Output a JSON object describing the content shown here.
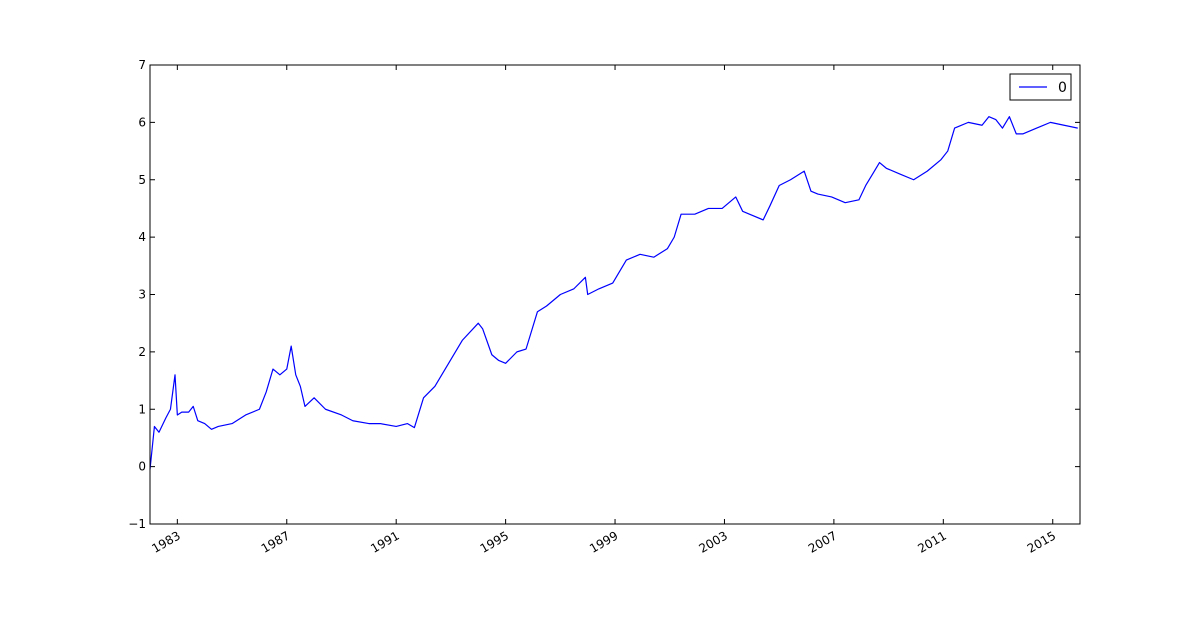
{
  "chart_data": {
    "type": "line",
    "title": "",
    "xlabel": "",
    "ylabel": "",
    "xlim": [
      "1982-01-01",
      "2015-12-31"
    ],
    "ylim": [
      -1,
      7
    ],
    "x_ticks": [
      "1983",
      "1987",
      "1991",
      "1995",
      "1999",
      "2003",
      "2007",
      "2011",
      "2015"
    ],
    "y_ticks": [
      "−1",
      "0",
      "1",
      "2",
      "3",
      "4",
      "5",
      "6",
      "7"
    ],
    "grid": false,
    "legend_placement": "top-right",
    "series_color": "#0000ff",
    "series": [
      {
        "name": "0",
        "x": [
          "1982-01-01",
          "1982-03-01",
          "1982-05-01",
          "1982-08-01",
          "1982-10-01",
          "1982-12-01",
          "1983-01-01",
          "1983-03-01",
          "1983-06-01",
          "1983-08-01",
          "1983-10-01",
          "1984-01-01",
          "1984-04-01",
          "1984-07-01",
          "1985-01-01",
          "1985-07-01",
          "1986-01-01",
          "1986-04-01",
          "1986-07-01",
          "1986-10-01",
          "1987-01-01",
          "1987-03-01",
          "1987-05-01",
          "1987-07-01",
          "1987-09-01",
          "1988-01-01",
          "1988-06-01",
          "1989-01-01",
          "1989-06-01",
          "1990-01-01",
          "1990-06-01",
          "1991-01-01",
          "1991-06-01",
          "1991-09-01",
          "1992-01-01",
          "1992-06-01",
          "1992-12-01",
          "1993-06-01",
          "1994-01-01",
          "1994-03-01",
          "1994-07-01",
          "1994-10-01",
          "1995-01-01",
          "1995-06-01",
          "1995-10-01",
          "1996-03-01",
          "1996-07-01",
          "1997-01-01",
          "1997-07-01",
          "1997-12-01",
          "1998-01-01",
          "1998-06-01",
          "1998-12-01",
          "1999-06-01",
          "1999-12-01",
          "2000-06-01",
          "2000-12-01",
          "2001-03-01",
          "2001-06-01",
          "2001-12-01",
          "2002-06-01",
          "2002-12-01",
          "2003-06-01",
          "2003-09-01",
          "2003-12-01",
          "2004-06-01",
          "2004-09-01",
          "2005-01-01",
          "2005-06-01",
          "2005-12-01",
          "2006-03-01",
          "2006-06-01",
          "2006-12-01",
          "2007-06-01",
          "2007-12-01",
          "2008-03-01",
          "2008-06-01",
          "2008-09-01",
          "2008-12-01",
          "2009-06-01",
          "2009-12-01",
          "2010-06-01",
          "2010-12-01",
          "2011-03-01",
          "2011-06-01",
          "2011-12-01",
          "2012-06-01",
          "2012-09-01",
          "2012-12-01",
          "2013-03-01",
          "2013-06-01",
          "2013-09-01",
          "2013-12-01",
          "2014-06-01",
          "2014-12-01",
          "2015-06-01",
          "2015-12-01"
        ],
        "values": [
          -0.05,
          0.7,
          0.6,
          0.85,
          1.0,
          1.6,
          0.9,
          0.95,
          0.95,
          1.05,
          0.8,
          0.75,
          0.65,
          0.7,
          0.75,
          0.9,
          1.0,
          1.3,
          1.7,
          1.6,
          1.7,
          2.1,
          1.6,
          1.4,
          1.05,
          1.2,
          1.0,
          0.9,
          0.8,
          0.75,
          0.75,
          0.7,
          0.75,
          0.68,
          1.2,
          1.4,
          1.8,
          2.2,
          2.5,
          2.4,
          1.95,
          1.85,
          1.8,
          2.0,
          2.05,
          2.7,
          2.8,
          3.0,
          3.1,
          3.3,
          3.0,
          3.1,
          3.2,
          3.6,
          3.7,
          3.65,
          3.8,
          4.0,
          4.4,
          4.4,
          4.5,
          4.5,
          4.7,
          4.45,
          4.4,
          4.3,
          4.55,
          4.9,
          5.0,
          5.15,
          4.8,
          4.75,
          4.7,
          4.6,
          4.65,
          4.9,
          5.1,
          5.3,
          5.2,
          5.1,
          5.0,
          5.15,
          5.35,
          5.5,
          5.9,
          6.0,
          5.95,
          6.1,
          6.05,
          5.9,
          6.1,
          5.8,
          5.8,
          5.9,
          6.0,
          5.95,
          5.9
        ]
      }
    ]
  }
}
